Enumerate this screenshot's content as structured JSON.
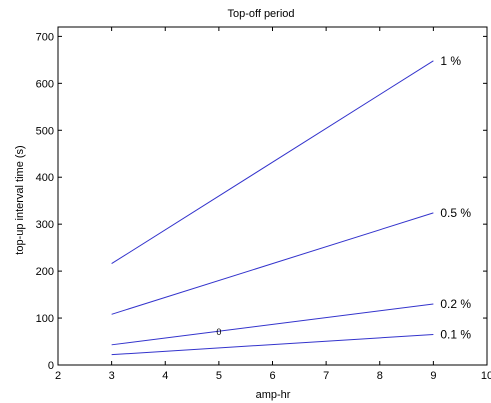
{
  "chart_data": {
    "type": "line",
    "title": "Top-off period",
    "xlabel": "amp-hr",
    "ylabel": "top-up interval time (s)",
    "xlim": [
      2,
      10
    ],
    "ylim": [
      0,
      720
    ],
    "xticks": [
      2,
      3,
      4,
      5,
      6,
      7,
      8,
      9,
      10
    ],
    "yticks": [
      0,
      100,
      200,
      300,
      400,
      500,
      600,
      700
    ],
    "grid": false,
    "line_color": "#3333cc",
    "series": [
      {
        "name": "1 %",
        "x": [
          3,
          9
        ],
        "values": [
          216,
          648
        ]
      },
      {
        "name": "0.5 %",
        "x": [
          3,
          9
        ],
        "values": [
          108,
          324
        ]
      },
      {
        "name": "0.2 %",
        "x": [
          3,
          9
        ],
        "values": [
          43,
          130
        ]
      },
      {
        "name": "0.1 %",
        "x": [
          3,
          9
        ],
        "values": [
          22,
          65
        ]
      }
    ],
    "annotations": [
      {
        "text": "0",
        "x": 5,
        "y": 70
      }
    ]
  }
}
